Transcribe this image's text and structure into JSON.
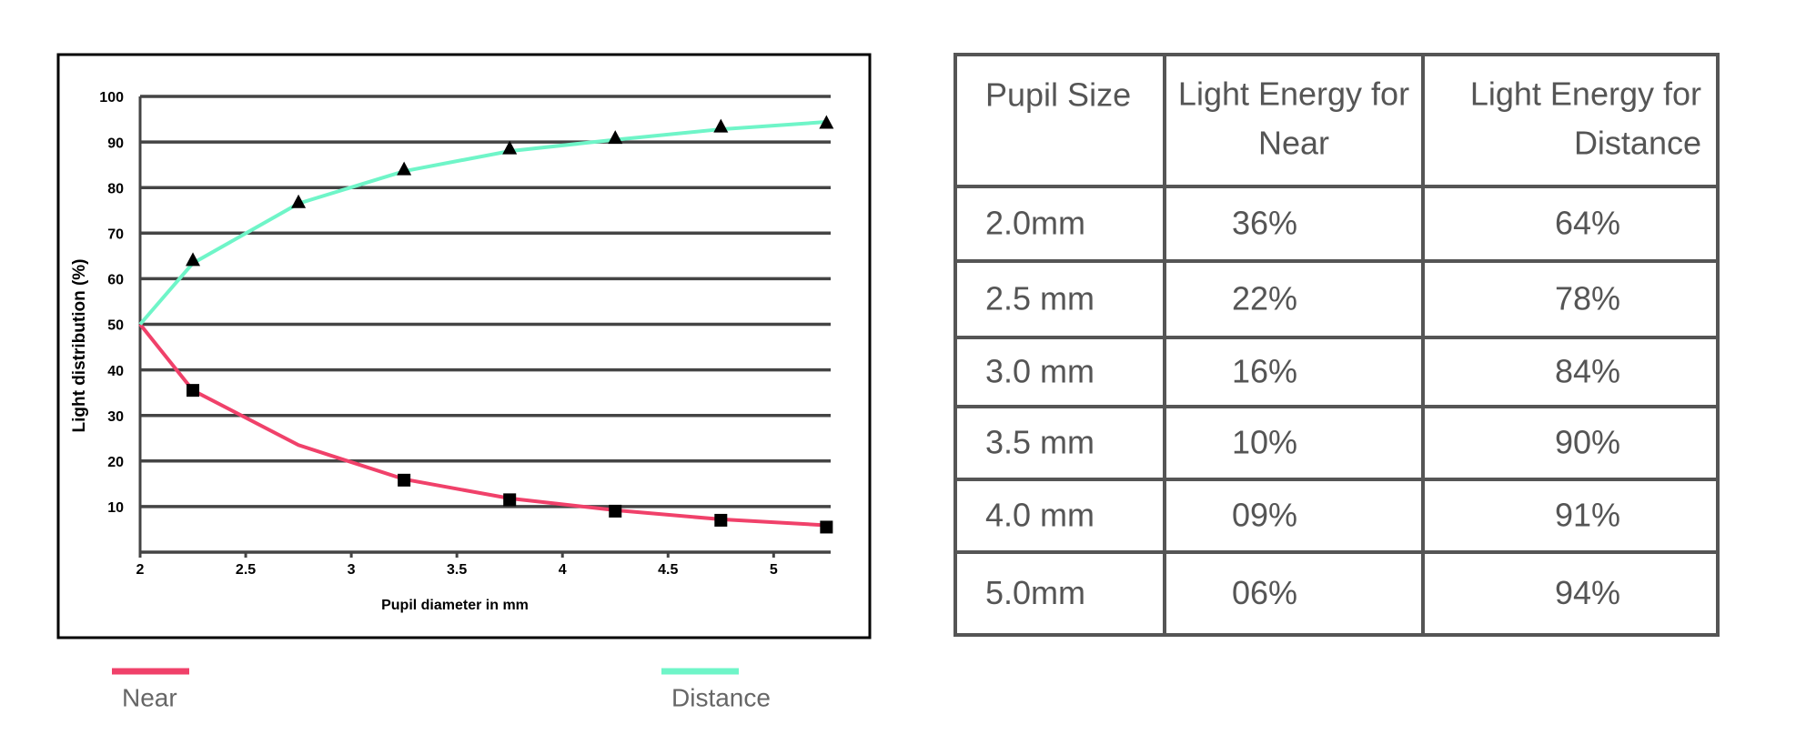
{
  "chart_data": {
    "type": "line",
    "x": [
      2,
      2.25,
      2.75,
      3.25,
      3.75,
      4.25,
      4.75,
      5.25
    ],
    "series": [
      {
        "name": "Near",
        "color": "#f0416a",
        "marker": "square",
        "values": [
          50,
          35.5,
          23.5,
          16,
          11.8,
          9.2,
          7.2,
          5.9
        ],
        "marker_values": [
          null,
          35.5,
          null,
          15.8,
          11.5,
          9,
          7,
          5.5
        ]
      },
      {
        "name": "Distance",
        "color": "#6ff5c8",
        "marker": "triangle",
        "values": [
          50,
          63.4,
          76.5,
          83.6,
          88,
          90.5,
          92.8,
          94.4
        ],
        "marker_values": [
          null,
          64,
          76.7,
          83.9,
          88.5,
          90.8,
          93.3,
          94.1
        ]
      }
    ],
    "xlabel": "Pupil diameter in mm",
    "ylabel": "Light distribution (%)",
    "xlim": [
      2,
      5.27
    ],
    "ylim": [
      0,
      100
    ],
    "xticks": [
      2,
      2.5,
      3,
      3.5,
      4,
      4.5,
      5
    ],
    "yticks": [
      10,
      20,
      30,
      40,
      50,
      60,
      70,
      80,
      90,
      100
    ],
    "grid": true,
    "legend": "bottom"
  },
  "table": {
    "header": [
      "Pupil Size",
      "Light Energy for Near",
      "Light Energy for Distance"
    ],
    "rows": [
      [
        "2.0mm",
        "36%",
        "64%"
      ],
      [
        "2.5 mm",
        "22%",
        "78%"
      ],
      [
        "3.0 mm",
        "16%",
        "84%"
      ],
      [
        "3.5 mm",
        "10%",
        "90%"
      ],
      [
        "4.0 mm",
        "09%",
        "91%"
      ],
      [
        "5.0mm",
        "06%",
        "94%"
      ]
    ]
  }
}
